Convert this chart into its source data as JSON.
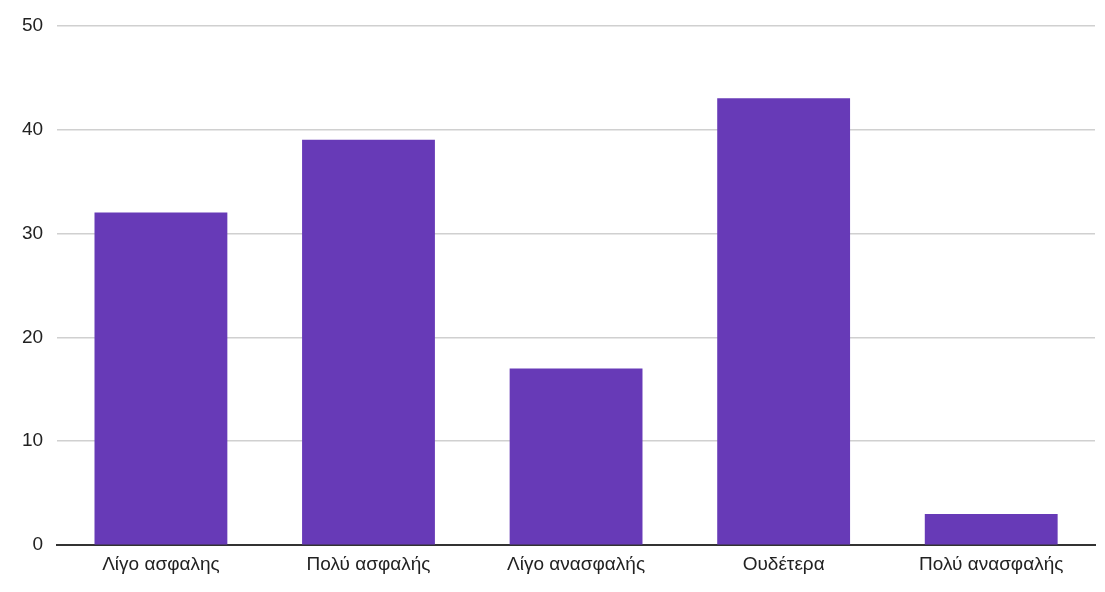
{
  "chart_data": {
    "type": "bar",
    "categories": [
      "Λίγο ασφαλης",
      "Πολύ ασφαλής",
      "Λίγο ανασφαλής",
      "Ουδέτερα",
      "Πολύ ανασφαλής"
    ],
    "values": [
      32,
      39,
      17,
      43,
      3
    ],
    "color": "#673ab7",
    "ylim": [
      0,
      50
    ],
    "yticks": [
      0,
      10,
      20,
      30,
      40,
      50
    ],
    "grid": "y",
    "legend": false
  }
}
